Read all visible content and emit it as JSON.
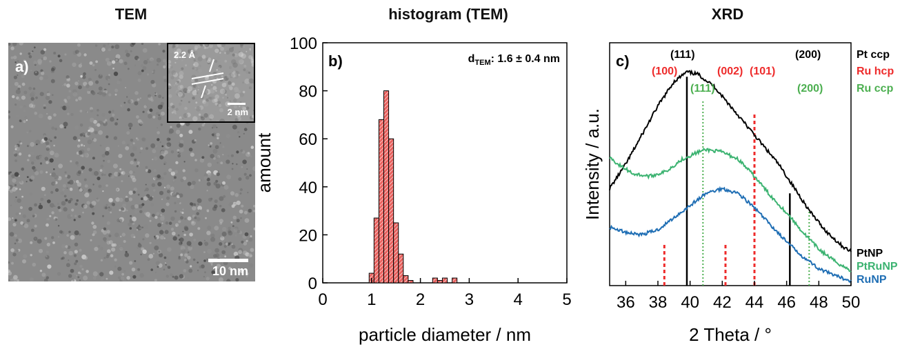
{
  "titles": {
    "tem": "TEM",
    "histogram": "histogram (TEM)",
    "xrd": "XRD"
  },
  "tem": {
    "panel_label": "a)",
    "scale_bar": "10 nm",
    "inset_spacing": "2.2 Å",
    "inset_scale_bar": "2 nm"
  },
  "chart_data": [
    {
      "type": "bar",
      "panel_label": "b)",
      "annotation": "d",
      "annotation_sub": "TEM",
      "annotation_value": ": 1.6 ± 0.4 nm",
      "xlabel": "particle diameter / nm",
      "ylabel": "amount",
      "xlim": [
        0,
        5
      ],
      "ylim": [
        0,
        100
      ],
      "x_ticks": [
        "0",
        "1",
        "2",
        "3",
        "4",
        "5"
      ],
      "y_ticks": [
        "0",
        "20",
        "40",
        "60",
        "80",
        "100"
      ],
      "bin_width": 0.1,
      "bin_centers": [
        0.9,
        1.0,
        1.1,
        1.2,
        1.3,
        1.4,
        1.5,
        1.6,
        1.7,
        1.8,
        1.9,
        2.0,
        2.1,
        2.2,
        2.3,
        2.4,
        2.5,
        2.6,
        2.7,
        2.8,
        2.9,
        3.0,
        3.1,
        3.2,
        3.3,
        3.4,
        3.5,
        3.6,
        3.7
      ],
      "values": [
        0,
        4,
        27,
        68,
        80,
        60,
        25,
        12,
        3,
        1,
        0,
        0,
        0,
        0,
        2,
        1,
        2,
        0,
        2,
        0,
        0,
        0,
        0,
        0,
        0,
        0,
        0,
        0,
        0
      ],
      "bar_color": "#e8625f"
    },
    {
      "type": "line",
      "panel_label": "c)",
      "xlabel": "2 Theta / °",
      "ylabel": "Intensity / a.u.",
      "xlim": [
        35,
        50
      ],
      "x_ticks": [
        "36",
        "38",
        "40",
        "42",
        "44",
        "46",
        "48",
        "50"
      ],
      "series": [
        {
          "name": "PtNP",
          "color": "#000000",
          "x": [
            35,
            36,
            37,
            38,
            39,
            39.8,
            40.5,
            41.5,
            42.5,
            43.5,
            44.5,
            45.5,
            46.5,
            47.5,
            48.5,
            49.5,
            50
          ],
          "y": [
            0.4,
            0.5,
            0.62,
            0.74,
            0.84,
            0.88,
            0.87,
            0.82,
            0.74,
            0.66,
            0.58,
            0.5,
            0.4,
            0.3,
            0.22,
            0.16,
            0.14
          ]
        },
        {
          "name": "PtRuNP",
          "color": "#3cb371",
          "x": [
            35,
            35.5,
            36.5,
            37.5,
            38.5,
            39.5,
            40.5,
            41,
            42,
            43,
            44,
            45,
            46,
            47,
            48,
            49,
            50
          ],
          "y": [
            0.53,
            0.5,
            0.46,
            0.45,
            0.47,
            0.52,
            0.55,
            0.56,
            0.55,
            0.52,
            0.45,
            0.37,
            0.3,
            0.22,
            0.15,
            0.1,
            0.06
          ]
        },
        {
          "name": "RuNP",
          "color": "#1f6eb4",
          "x": [
            35,
            36,
            37,
            38,
            39,
            40,
            41,
            42,
            43,
            44,
            45,
            46,
            47,
            48,
            49,
            50
          ],
          "y": [
            0.24,
            0.22,
            0.21,
            0.23,
            0.28,
            0.33,
            0.38,
            0.4,
            0.38,
            0.32,
            0.25,
            0.18,
            0.12,
            0.07,
            0.04,
            0.02
          ]
        }
      ],
      "reference_lines": {
        "pt_ccp": [
          39.8,
          46.2
        ],
        "ru_hcp": [
          38.4,
          42.2,
          44.0
        ],
        "ru_ccp": [
          40.8,
          47.4
        ]
      },
      "reflection_labels": {
        "pt_ccp": [
          "(111)",
          "(200)"
        ],
        "ru_hcp": [
          "(100)",
          "(002)",
          "(101)"
        ],
        "ru_ccp": [
          "(111)",
          "(200)"
        ]
      },
      "legend": {
        "pt_ccp": "Pt  ccp",
        "ru_hcp": "Ru hcp",
        "ru_ccp": "Ru ccp"
      },
      "colors": {
        "pt_ccp": "#000000",
        "ru_hcp": "#ee2b2b",
        "ru_ccp": "#4caf50"
      }
    }
  ]
}
